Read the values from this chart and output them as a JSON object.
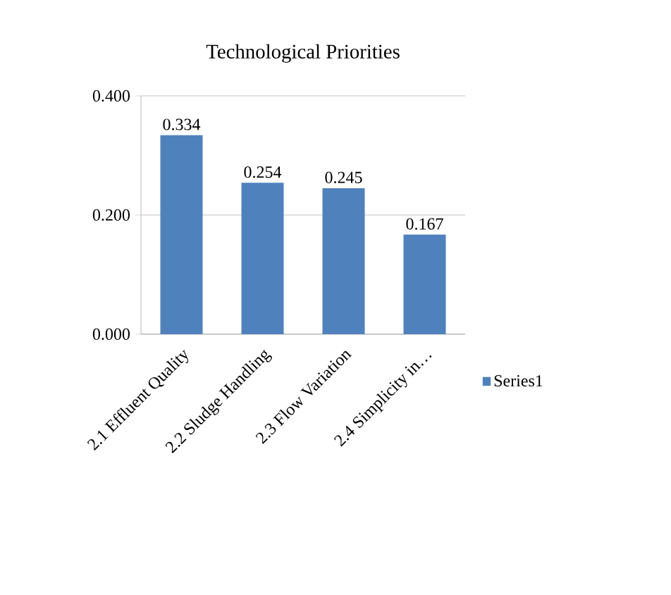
{
  "chart_data": {
    "type": "bar",
    "title": "Technological Priorities",
    "categories": [
      "2.1 Effluent Quality",
      "2.2 Sludge Handling",
      "2.3 Flow Variation",
      "2.4 Simplicity in…"
    ],
    "series": [
      {
        "name": "Series1",
        "color": "#4f81bd",
        "values": [
          0.334,
          0.254,
          0.245,
          0.167
        ]
      }
    ],
    "ylim": [
      0,
      0.4
    ],
    "yticks": [
      {
        "value": 0,
        "label": "0.000"
      },
      {
        "value": 0.2,
        "label": "0.200"
      },
      {
        "value": 0.4,
        "label": "0.400"
      }
    ],
    "grid": "y",
    "legend": "right",
    "data_labels": true
  }
}
